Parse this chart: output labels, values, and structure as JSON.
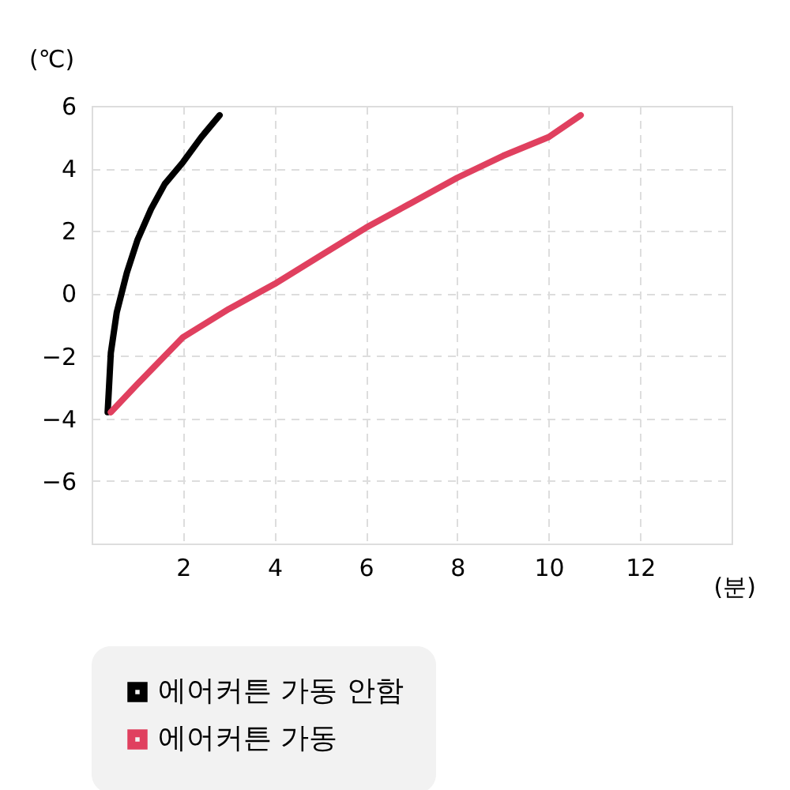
{
  "chart_data": {
    "type": "line",
    "xlabel": "(분)",
    "ylabel": "(℃)",
    "xlim": [
      0,
      14
    ],
    "xticks": [
      2,
      4,
      6,
      8,
      10,
      12
    ],
    "ylim": [
      -8,
      6
    ],
    "yticks": [
      -6,
      -4,
      -2,
      0,
      2,
      4,
      6
    ],
    "grid": true,
    "legend": "bottom",
    "marker": "none",
    "line_style": "solid",
    "series": [
      {
        "name": "에어커튼 가동 안함",
        "color": "#000000",
        "x": [
          0.35,
          0.38,
          0.42,
          0.55,
          0.77,
          1.0,
          1.3,
          1.6,
          2.0,
          2.4,
          2.8
        ],
        "values": [
          -3.8,
          -3.0,
          -1.9,
          -0.6,
          0.66,
          1.7,
          2.7,
          3.5,
          4.2,
          5.0,
          5.7
        ]
      },
      {
        "name": "에어커튼 가동",
        "color": "#e0405f",
        "x": [
          0.42,
          1.0,
          2.0,
          3.0,
          4.0,
          5.0,
          6.0,
          7.0,
          8.0,
          9.0,
          10.0,
          10.7
        ],
        "values": [
          -3.8,
          -2.9,
          -1.4,
          -0.5,
          0.3,
          1.2,
          2.1,
          2.9,
          3.7,
          4.4,
          5.0,
          5.7
        ]
      }
    ]
  }
}
